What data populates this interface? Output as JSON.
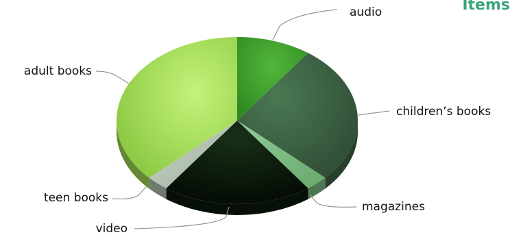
{
  "corner_text": "Items",
  "chart_data": {
    "type": "pie",
    "style": "3d",
    "title": "",
    "categories": [
      "audio",
      "children's books",
      "magazines",
      "video",
      "teen books",
      "adult books"
    ],
    "values": [
      10,
      27,
      3,
      20,
      3,
      37
    ],
    "unit": "%",
    "legend": "none",
    "labels": {
      "audio": "audio",
      "childrens_books": "children’s books",
      "magazines": "magazines",
      "video": "video",
      "teen_books": "teen books",
      "adult_books": "adult books"
    },
    "slice_colors": [
      "#3d9a2a",
      "#3f6446",
      "#7fbf86",
      "#0b1a0b",
      "#b4c3b4",
      "#a6dc53"
    ]
  }
}
